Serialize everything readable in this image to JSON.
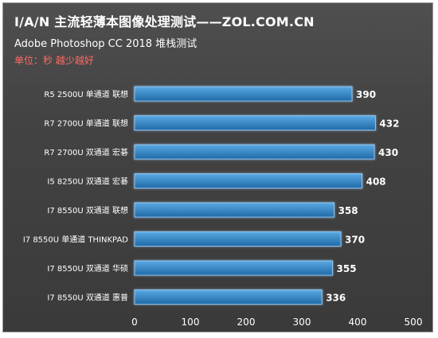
{
  "header": {
    "title": "I/A/N 主流轻薄本图像处理测试——ZOL.COM.CN",
    "subtitle": "Adobe Photoshop CC 2018 堆栈测试",
    "unit_note": "单位：秒 越少越好"
  },
  "chart_data": {
    "type": "bar",
    "orientation": "horizontal",
    "categories": [
      "R5 2500U 单通道 联想",
      "R7 2700U 单通道 联想",
      "R7 2700U 双通道 宏碁",
      "I5 8250U 双通道 宏碁",
      "I7 8550U 双通道 联想",
      "I7 8550U 单通道 THINKPAD",
      "I7 8550U 双通道 华硕",
      "I7 8550U 双通道 惠普"
    ],
    "values": [
      390,
      432,
      430,
      408,
      358,
      370,
      355,
      336
    ],
    "xlim": [
      0,
      500
    ],
    "xticks": [
      0,
      100,
      200,
      300,
      400,
      500
    ],
    "grid": false,
    "legend": "none",
    "colors": {
      "bar_top": "#5aa9e2",
      "bar_bottom": "#1f6aa8",
      "bar_outline": "#9fd3ff",
      "label_text": "#ffffff",
      "unit_text": "#ff6a63"
    }
  }
}
